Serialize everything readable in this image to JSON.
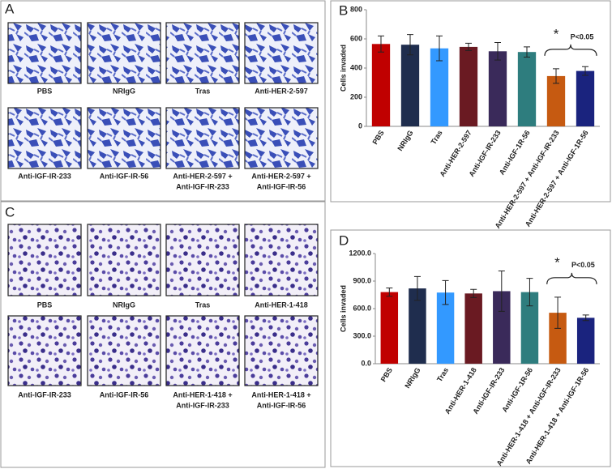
{
  "panels": {
    "a": {
      "label": "A",
      "captions": [
        [
          "PBS"
        ],
        [
          "NRIgG"
        ],
        [
          "Tras"
        ],
        [
          "Anti-HER-2-597"
        ],
        [
          "Anti-IGF-IR-233"
        ],
        [
          "Anti-IGF-IR-56"
        ],
        [
          "Anti-HER-2-597 +",
          "Anti-IGF-IR-233"
        ],
        [
          "Anti-HER-2-597 +",
          "Anti-IGF-IR-56"
        ]
      ]
    },
    "c": {
      "label": "C",
      "captions": [
        [
          "PBS"
        ],
        [
          "NRIgG"
        ],
        [
          "Tras"
        ],
        [
          "Anti-HER-1-418"
        ],
        [
          "Anti-IGF-IR-233"
        ],
        [
          "Anti-IGF-IR-56"
        ],
        [
          "Anti-HER-1-418 +",
          "Anti-IGF-IR-233"
        ],
        [
          "Anti-HER-1-418 +",
          "Anti-IGF-IR-56"
        ]
      ]
    }
  },
  "chart_data": [
    {
      "type": "bar",
      "title": "B",
      "y_label": "Cells invaded",
      "categories": [
        "PBS",
        "NRIgG",
        "Tras",
        "Anti-HER-2-597",
        "Anti-IGF-IR-233",
        "Anti-IGF-1R-56",
        "Anti-HER-2-597 + Anti-IGF-IR-233",
        "Anti-HER-2-597 + Anti-IGF-1R-56"
      ],
      "values": [
        565,
        560,
        535,
        545,
        515,
        510,
        345,
        380
      ],
      "errors": [
        55,
        70,
        85,
        25,
        60,
        35,
        50,
        30
      ],
      "colors": [
        "#c00000",
        "#1f2d4e",
        "#3399ff",
        "#6a1a22",
        "#3a2a5a",
        "#2e7d7e",
        "#c65a11",
        "#1a237e"
      ],
      "ylim": [
        0,
        800
      ],
      "yticks": [
        0,
        200,
        400,
        600,
        800
      ],
      "annotations": [
        "*",
        "P<0.05"
      ]
    },
    {
      "type": "bar",
      "title": "D",
      "y_label": "Cells invaded",
      "categories": [
        "PBS",
        "NRIgG",
        "Tras",
        "Anti-HER-1-418",
        "Anti-IGF-IR-233",
        "Anti-IGF-1R-56",
        "Anti-HER-1-418 + Anti-IGF-IR-233",
        "Anti-HER-1-418 + Anti-IGF-1R-56"
      ],
      "values": [
        780,
        820,
        775,
        765,
        790,
        780,
        555,
        500
      ],
      "errors": [
        45,
        130,
        130,
        45,
        220,
        150,
        170,
        30
      ],
      "colors": [
        "#c00000",
        "#1f2d4e",
        "#3399ff",
        "#6a1a22",
        "#3a2a5a",
        "#2e7d7e",
        "#c65a11",
        "#1a237e"
      ],
      "ylim": [
        0,
        1200
      ],
      "yticks": [
        {
          "value": 0,
          "label": "0.0"
        },
        {
          "value": 300,
          "label": "300.0"
        },
        {
          "value": 600,
          "label": "600.0"
        },
        {
          "value": 900,
          "label": "900.0"
        },
        {
          "value": 1200,
          "label": "1200.0"
        }
      ],
      "annotations": [
        "*",
        "P<0.05"
      ]
    }
  ]
}
